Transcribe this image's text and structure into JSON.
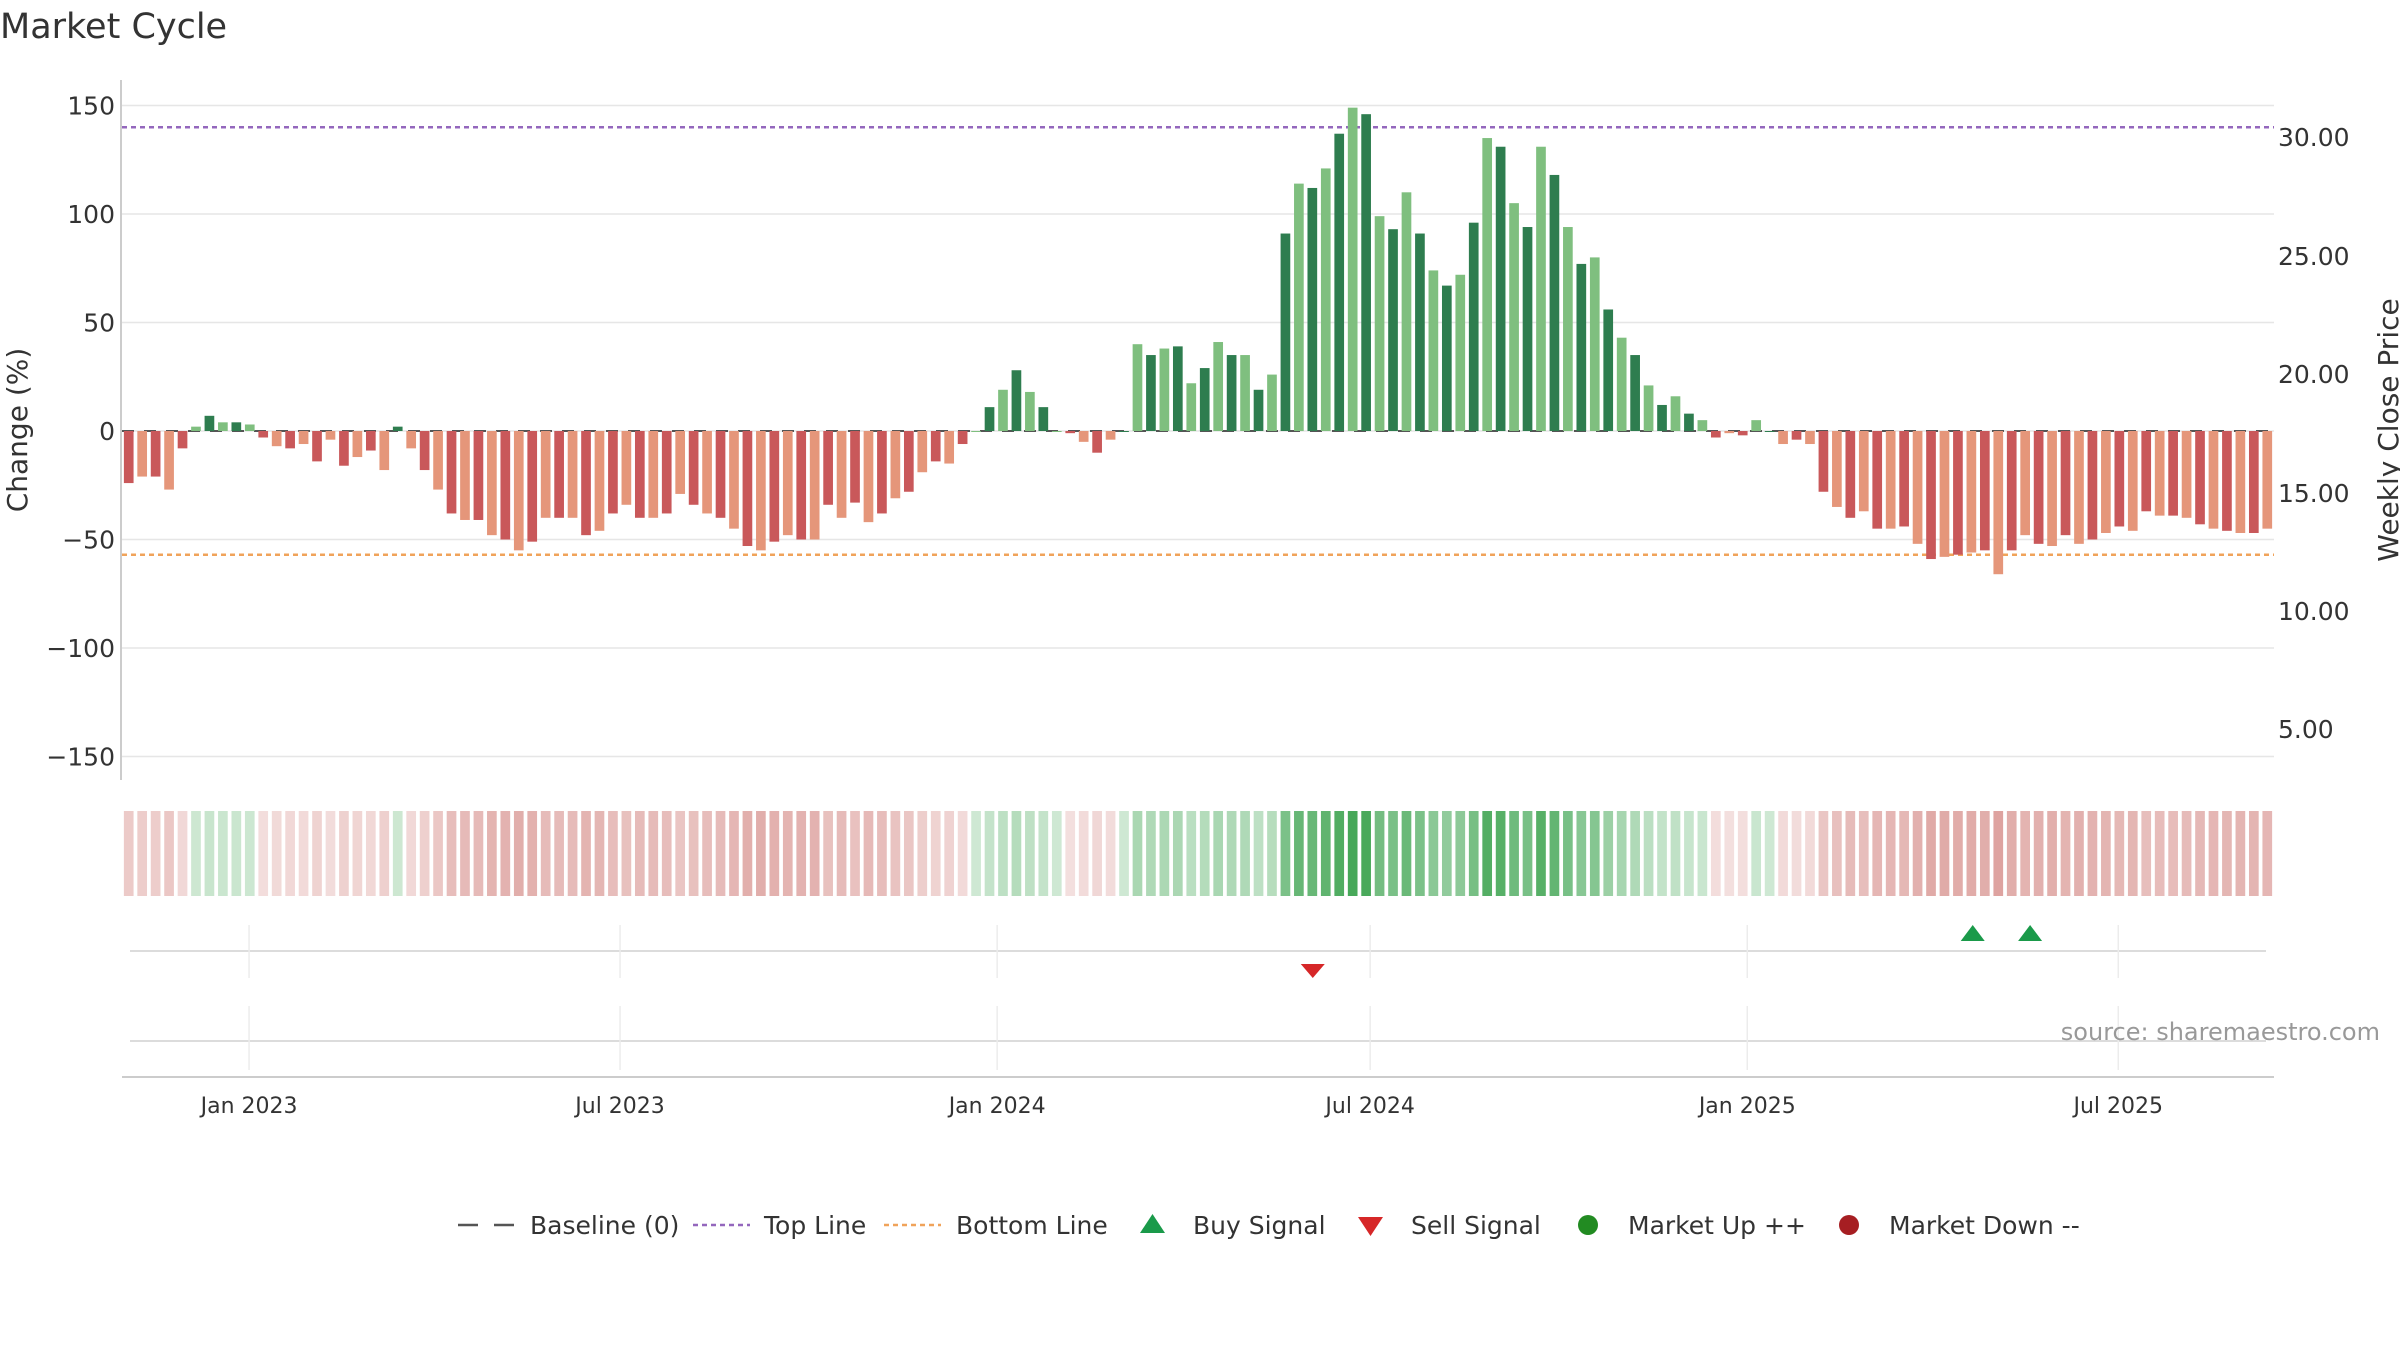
{
  "chart_data": {
    "type": "bar",
    "title": "Market Cycle",
    "ylabel": "Change (%)",
    "ylabel_right": "Weekly Close Price",
    "ylim": [
      -160,
      160
    ],
    "yticks": [
      150,
      100,
      50,
      0,
      -50,
      -100,
      -150
    ],
    "ytick_labels": [
      "150",
      "100",
      "50",
      "0",
      "−100",
      "−150"
    ],
    "ytick_labels_all": [
      "150",
      "100",
      "50",
      "0",
      "−50",
      "−100",
      "−150"
    ],
    "y2_ticks": [
      "30.00",
      "25.00",
      "20.00",
      "15.00",
      "10.00",
      "5.00"
    ],
    "xtick_labels": [
      "Jan 2023",
      "Jul 2023",
      "Jan 2024",
      "Jul 2024",
      "Jan 2025",
      "Jul 2025"
    ],
    "xtick_dates": [
      "2023-01-01",
      "2023-07-01",
      "2024-01-01",
      "2024-07-01",
      "2025-01-01",
      "2025-07-01"
    ],
    "x_start": "2022-10-31",
    "x_end": "2025-09-15",
    "top_line": 140,
    "bottom_line": -57,
    "source": "source: sharemaestro.com",
    "weeks_start": "2022-10-31",
    "values": [
      -24,
      -21,
      -21,
      -27,
      -8,
      2,
      7,
      4,
      4,
      3,
      -3,
      -7,
      -8,
      -6,
      -14,
      -4,
      -16,
      -12,
      -9,
      -18,
      2,
      -8,
      -18,
      -27,
      -38,
      -41,
      -41,
      -48,
      -50,
      -55,
      -51,
      -40,
      -40,
      -40,
      -48,
      -46,
      -38,
      -34,
      -40,
      -40,
      -38,
      -29,
      -34,
      -38,
      -40,
      -45,
      -53,
      -55,
      -51,
      -48,
      -50,
      -50,
      -34,
      -40,
      -33,
      -42,
      -38,
      -31,
      -28,
      -19,
      -14,
      -15,
      -6,
      0,
      11,
      19,
      28,
      18,
      11,
      0,
      -1,
      -5,
      -10,
      -4,
      0,
      40,
      35,
      38,
      39,
      22,
      29,
      41,
      35,
      35,
      19,
      26,
      91,
      114,
      112,
      121,
      137,
      149,
      146,
      99,
      93,
      110,
      91,
      74,
      67,
      72,
      96,
      135,
      131,
      105,
      94,
      131,
      118,
      94,
      77,
      80,
      56,
      43,
      35,
      21,
      12,
      16,
      8,
      5,
      -3,
      -1,
      -2,
      5,
      0,
      -6,
      -4,
      -6,
      -28,
      -35,
      -40,
      -37,
      -45,
      -45,
      -44,
      -52,
      -59,
      -58,
      -57,
      -56,
      -55,
      -66,
      -55,
      -48,
      -52,
      -53,
      -48,
      -52,
      -50,
      -47,
      -44,
      -46,
      -37,
      -39,
      -39,
      -40,
      -43,
      -45,
      -46,
      -47,
      -47,
      -45
    ],
    "band_levels": [
      -24,
      -21,
      -21,
      -27,
      -8,
      2,
      7,
      4,
      4,
      3,
      -3,
      -7,
      -8,
      -6,
      -14,
      -4,
      -16,
      -12,
      -9,
      -18,
      2,
      -8,
      -18,
      -27,
      -38,
      -41,
      -41,
      -48,
      -50,
      -55,
      -51,
      -40,
      -40,
      -40,
      -48,
      -46,
      -38,
      -34,
      -40,
      -40,
      -38,
      -29,
      -34,
      -38,
      -40,
      -45,
      -53,
      -55,
      -51,
      -48,
      -50,
      -50,
      -34,
      -40,
      -33,
      -42,
      -38,
      -31,
      -28,
      -19,
      -14,
      -15,
      -6,
      0,
      11,
      19,
      28,
      18,
      11,
      0,
      -1,
      -5,
      -10,
      -4,
      0,
      40,
      35,
      38,
      39,
      22,
      29,
      41,
      35,
      35,
      19,
      26,
      91,
      114,
      112,
      121,
      137,
      149,
      146,
      99,
      93,
      110,
      91,
      74,
      67,
      72,
      96,
      135,
      131,
      105,
      94,
      131,
      118,
      94,
      77,
      80,
      56,
      43,
      35,
      21,
      12,
      16,
      8,
      5,
      -3,
      -1,
      -2,
      5,
      0,
      -6,
      -4,
      -6,
      -28,
      -35,
      -40,
      -37,
      -45,
      -45,
      -44,
      -52,
      -59,
      -58,
      -57,
      -56,
      -55,
      -66,
      -55,
      -48,
      -52,
      -53,
      -48,
      -52,
      -50,
      -47,
      -44,
      -46,
      -37,
      -39,
      -39,
      -40,
      -43,
      -45,
      -46,
      -47,
      -47,
      -45
    ],
    "buy_signals": [
      "2025-04-21",
      "2025-05-19"
    ],
    "sell_signals": [
      "2024-06-03"
    ],
    "legend": {
      "baseline": "Baseline (0)",
      "top_line": "Top Line",
      "bottom_line": "Bottom Line",
      "buy": "Buy Signal",
      "sell": "Sell Signal",
      "market_up": "Market Up ++",
      "market_down": "Market Down --"
    },
    "legend_placement": "bottom-center",
    "grid": true,
    "colors": {
      "up_dark": "#2e7d4f",
      "up_light": "#7fbf7f",
      "down_dark": "#c9585a",
      "down_light": "#e5967a",
      "top_line": "#9467bd",
      "bottom_line": "#f0a35a",
      "buy": "#1a9a4a",
      "sell": "#d62728",
      "market_up": "#228b22",
      "market_down": "#a61e22",
      "baseline": "#555555",
      "grid": "#e6e6e6",
      "axis": "#bbbbbb"
    }
  }
}
